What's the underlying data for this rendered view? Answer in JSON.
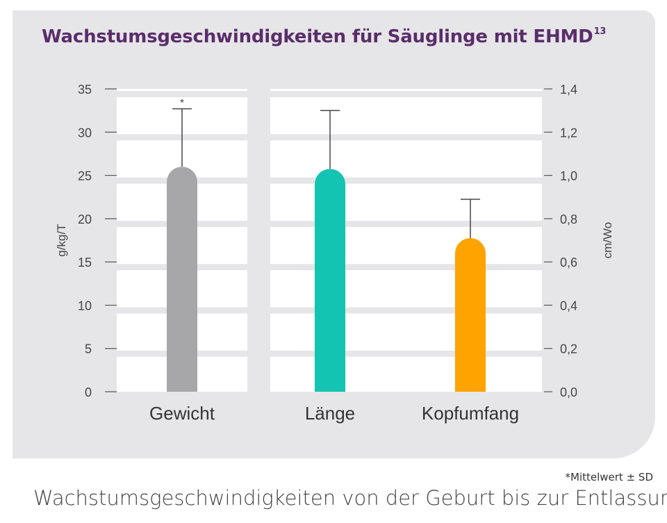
{
  "title": "Wachstumsgeschwindigkeiten für Säuglinge mit EHMD",
  "title_superscript": "13",
  "chart_data": {
    "type": "bar",
    "categories": [
      "Gewicht",
      "Länge",
      "Kopfumfang"
    ],
    "bars": [
      {
        "category": "Gewicht",
        "axis": "left",
        "value": 26.0,
        "sd_upper": 32.7,
        "marker": "*",
        "color": "#a7a7aa"
      },
      {
        "category": "Länge",
        "axis": "right",
        "value": 1.03,
        "sd_upper": 1.3,
        "marker": "",
        "color": "#13c4b2"
      },
      {
        "category": "Kopfumfang",
        "axis": "right",
        "value": 0.71,
        "sd_upper": 0.89,
        "marker": "",
        "color": "#ffa300"
      }
    ],
    "y_left": {
      "label": "g/kg/T",
      "min": 0,
      "max": 35,
      "ticks": [
        "0",
        "5",
        "10",
        "15",
        "20",
        "25",
        "30",
        "35"
      ]
    },
    "y_right": {
      "label": "cm/Wo",
      "min": 0,
      "max": 1.4,
      "ticks": [
        "0,0",
        "0,2",
        "0,4",
        "0,6",
        "0,8",
        "1,0",
        "1,2",
        "1,4"
      ]
    },
    "grid": true
  },
  "footnote": "*Mittelwert ± SD",
  "caption": "Wachstumsgeschwindigkeiten von der Geburt bis zur Entlassung"
}
